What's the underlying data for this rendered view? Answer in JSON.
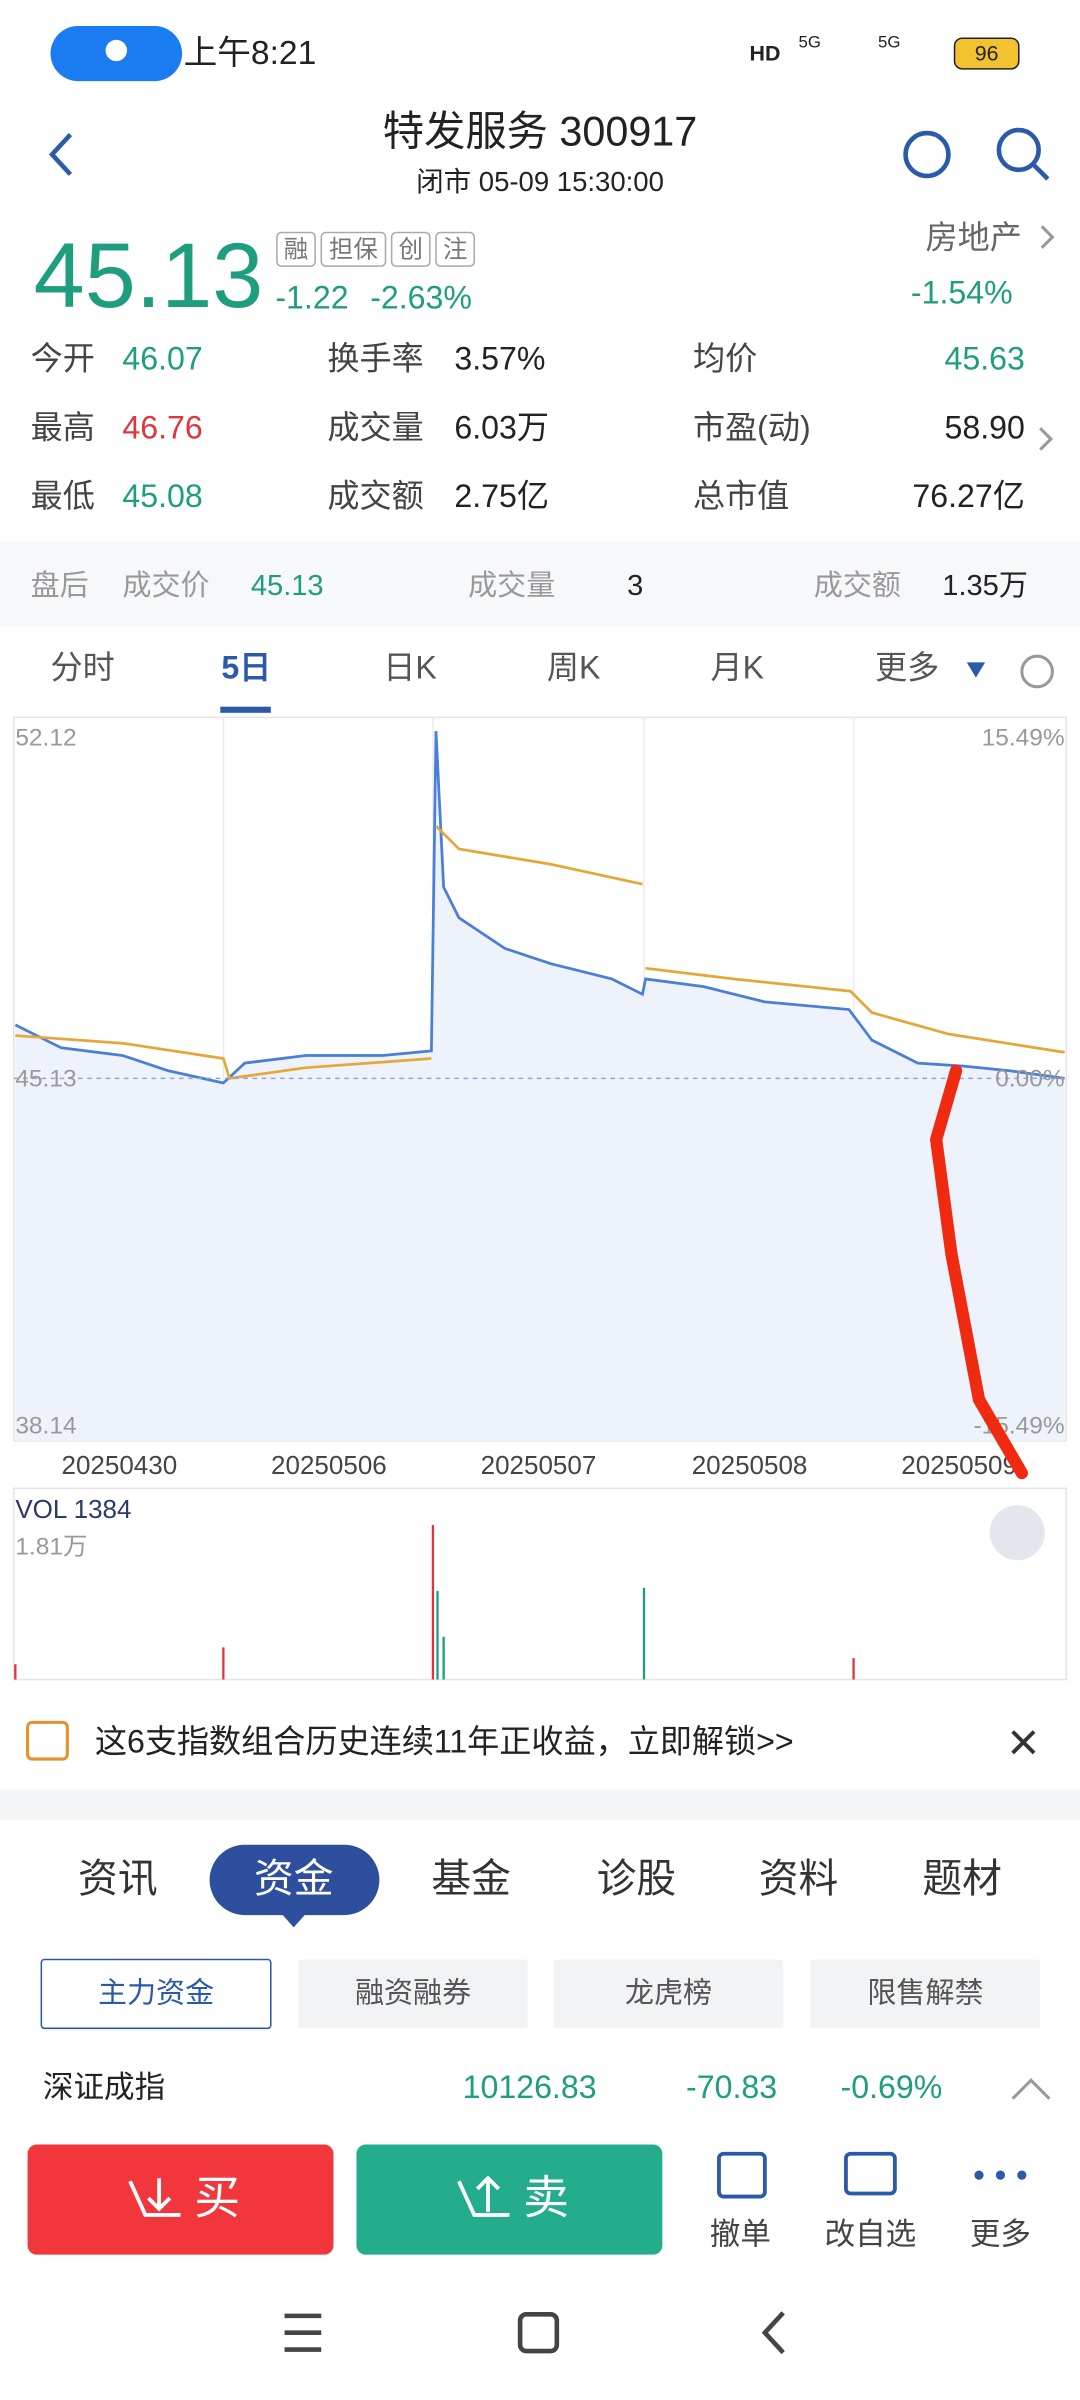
{
  "status": {
    "time": "上午8:21",
    "hd": "HD",
    "net1": "5G",
    "net2": "5G",
    "battery": "96"
  },
  "header": {
    "title": "特发服务 300917",
    "subtitle": "闭市 05-09 15:30:00"
  },
  "quote": {
    "price": "45.13",
    "badges": [
      "融",
      "担保",
      "创",
      "注"
    ],
    "change": "-1.22",
    "change_pct": "-2.63%",
    "sector": "房地产",
    "sector_pct": "-1.54%"
  },
  "stats": [
    [
      [
        "今开",
        "46.07"
      ],
      [
        "换手率",
        "3.57%"
      ],
      [
        "均价",
        "45.63"
      ]
    ],
    [
      [
        "最高",
        "46.76"
      ],
      [
        "成交量",
        "6.03万"
      ],
      [
        "市盈(动)",
        "58.90"
      ]
    ],
    [
      [
        "最低",
        "45.08"
      ],
      [
        "成交额",
        "2.75亿"
      ],
      [
        "总市值",
        "76.27亿"
      ]
    ]
  ],
  "after_hours": {
    "label": "盘后",
    "items": [
      [
        "成交价",
        "45.13"
      ],
      [
        "成交量",
        "3"
      ],
      [
        "成交额",
        "1.35万"
      ]
    ]
  },
  "chart_tabs": [
    "分时",
    "5日",
    "日K",
    "周K",
    "月K",
    "更多"
  ],
  "chart": {
    "y_max": "52.12",
    "y_mid": "45.13",
    "y_min": "38.14",
    "pct_max": "15.49%",
    "pct_mid": "0.00%",
    "pct_min": "-15.49%",
    "dates": [
      "20250430",
      "20250506",
      "20250507",
      "20250508",
      "20250509"
    ]
  },
  "volume": {
    "label": "VOL 1384",
    "max": "1.81万"
  },
  "banner": {
    "text": "这6支指数组合历史连续11年正收益，立即解锁>>"
  },
  "info_tabs": [
    "资讯",
    "资金",
    "基金",
    "诊股",
    "资料",
    "题材"
  ],
  "sub_tabs": [
    "主力资金",
    "融资融券",
    "龙虎榜",
    "限售解禁"
  ],
  "index": {
    "name": "深证成指",
    "value": "10126.83",
    "change": "-70.83",
    "pct": "-0.69%"
  },
  "actions": {
    "buy": "买",
    "sell": "卖",
    "tools": [
      "撤单",
      "改自选",
      "更多"
    ]
  }
}
